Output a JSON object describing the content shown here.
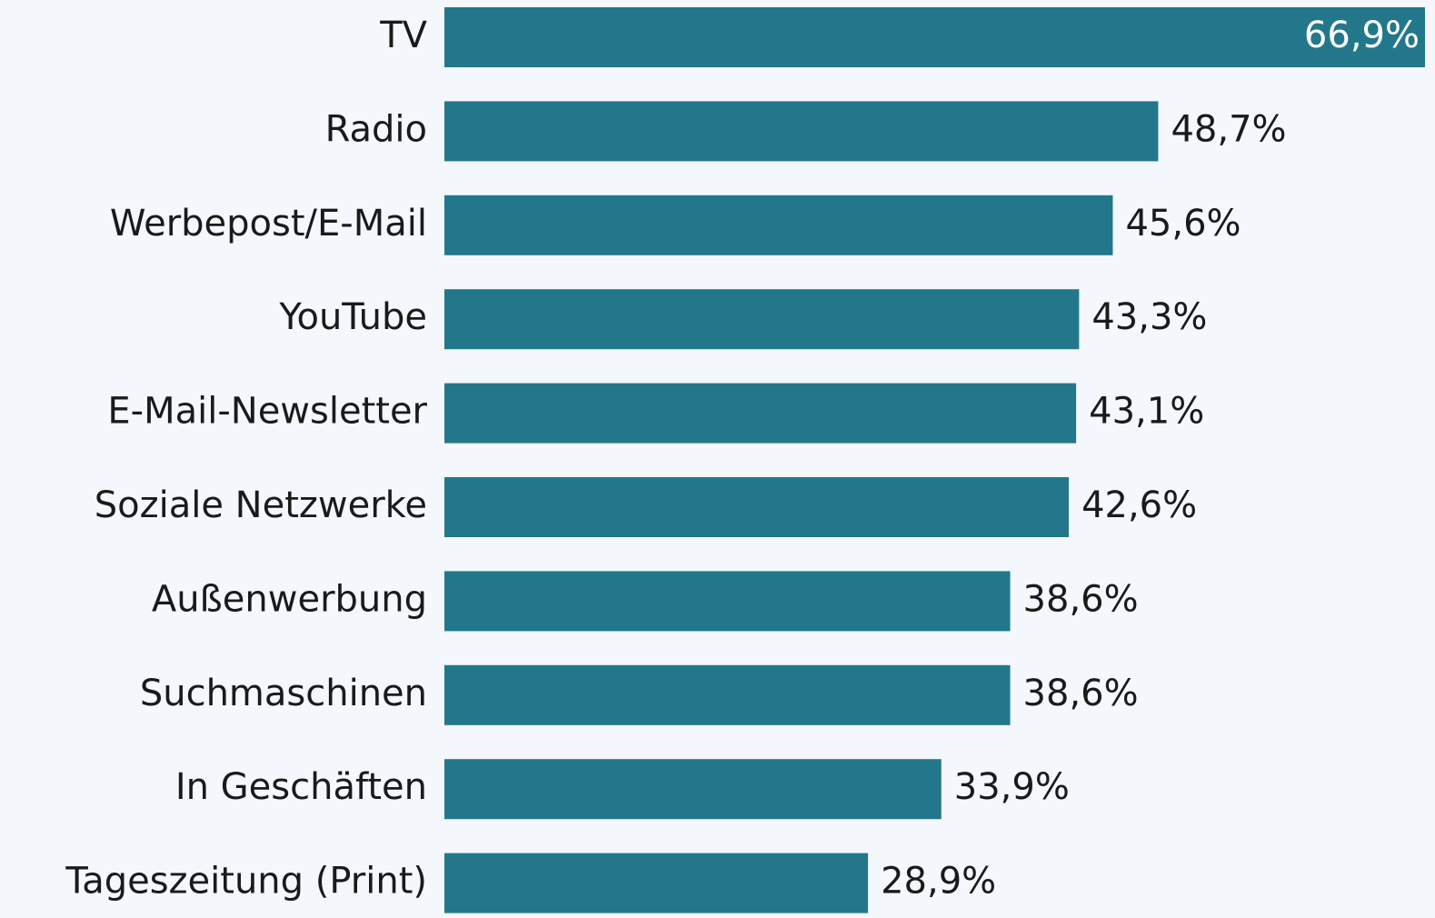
{
  "chart_data": {
    "type": "hbar",
    "categories": [
      "TV",
      "Radio",
      "Werbepost/E-Mail",
      "YouTube",
      "E-Mail-Newsletter",
      "Soziale Netzwerke",
      "Außenwerbung",
      "Suchmaschinen",
      "In Geschäften",
      "Tageszeitung (Print)"
    ],
    "values": [
      66.9,
      48.7,
      45.6,
      43.3,
      43.1,
      42.6,
      38.6,
      38.6,
      33.9,
      28.9
    ],
    "value_labels": [
      "66,9%",
      "48,7%",
      "45,6%",
      "43,3%",
      "43,1%",
      "42,6%",
      "38,6%",
      "38,6%",
      "33,9%",
      "28,9%"
    ],
    "color": "#22788a"
  }
}
